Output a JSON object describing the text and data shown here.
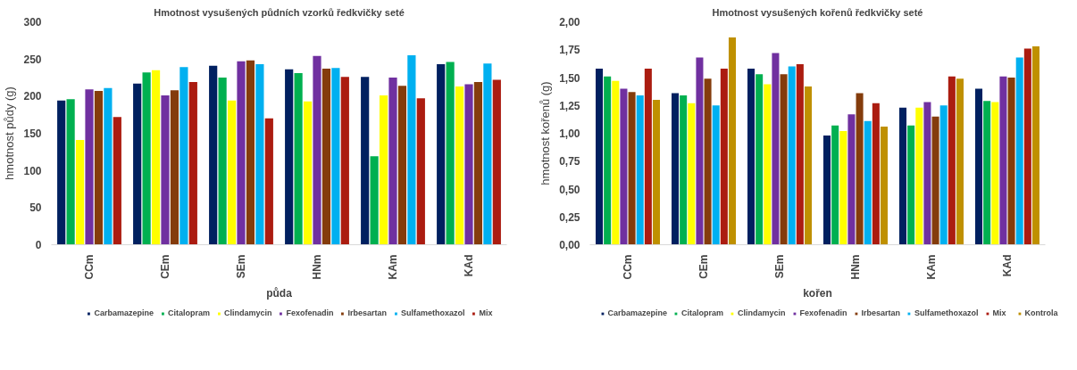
{
  "chart_data": [
    {
      "type": "bar",
      "title": "Hmotnost vysušených půdních vzorků ředkvičky seté",
      "xlabel": "půda",
      "ylabel": "hmotnost půdy (g)",
      "categories": [
        "CCm",
        "CEm",
        "SEm",
        "HNm",
        "KAm",
        "KAd"
      ],
      "ylim": [
        0,
        300
      ],
      "yticks": [
        0,
        50,
        100,
        150,
        200,
        250,
        300
      ],
      "grid": false,
      "legend": "bottom",
      "series": [
        {
          "name": "Carbamazepine",
          "color": "#002060",
          "values": [
            194,
            217,
            241,
            236,
            226,
            243
          ]
        },
        {
          "name": "Citalopram",
          "color": "#00b050",
          "values": [
            196,
            232,
            225,
            231,
            119,
            246
          ]
        },
        {
          "name": "Clindamycin",
          "color": "#ffff00",
          "values": [
            141,
            235,
            194,
            193,
            201,
            213
          ]
        },
        {
          "name": "Fexofenadin",
          "color": "#7030a0",
          "values": [
            209,
            201,
            247,
            254,
            225,
            216
          ]
        },
        {
          "name": "Irbesartan",
          "color": "#843c0c",
          "values": [
            207,
            208,
            248,
            237,
            214,
            219
          ]
        },
        {
          "name": "Sulfamethoxazol",
          "color": "#00b0f0",
          "values": [
            211,
            239,
            243,
            238,
            255,
            244
          ]
        },
        {
          "name": "Mix",
          "color": "#ab1c10",
          "values": [
            172,
            219,
            170,
            226,
            197,
            222
          ]
        }
      ]
    },
    {
      "type": "bar",
      "title": "Hmotnost vysušených kořenů ředkvičky seté",
      "xlabel": "kořen",
      "ylabel": "hmotnost kořenů (g)",
      "categories": [
        "CCm",
        "CEm",
        "SEm",
        "HNm",
        "KAm",
        "KAd"
      ],
      "ylim": [
        0,
        2
      ],
      "yticks": [
        {
          "value": 0,
          "label": "0,00"
        },
        {
          "value": 0.25,
          "label": "0,25"
        },
        {
          "value": 0.5,
          "label": "0,50"
        },
        {
          "value": 0.75,
          "label": "0,75"
        },
        {
          "value": 1,
          "label": "1,00"
        },
        {
          "value": 1.25,
          "label": "1,25"
        },
        {
          "value": 1.5,
          "label": "1,50"
        },
        {
          "value": 1.75,
          "label": "1,75"
        },
        {
          "value": 2,
          "label": "2,00"
        }
      ],
      "grid": false,
      "legend": "bottom",
      "series": [
        {
          "name": "Carbamazepine",
          "color": "#002060",
          "values": [
            1.58,
            1.36,
            1.58,
            0.98,
            1.23,
            1.4
          ]
        },
        {
          "name": "Citalopram",
          "color": "#00b050",
          "values": [
            1.51,
            1.34,
            1.53,
            1.07,
            1.07,
            1.29
          ]
        },
        {
          "name": "Clindamycin",
          "color": "#ffff00",
          "values": [
            1.47,
            1.27,
            1.44,
            1.02,
            1.23,
            1.28
          ]
        },
        {
          "name": "Fexofenadin",
          "color": "#7030a0",
          "values": [
            1.4,
            1.68,
            1.72,
            1.17,
            1.28,
            1.51
          ]
        },
        {
          "name": "Irbesartan",
          "color": "#843c0c",
          "values": [
            1.37,
            1.49,
            1.53,
            1.36,
            1.15,
            1.5
          ]
        },
        {
          "name": "Sulfamethoxazol",
          "color": "#00b0f0",
          "values": [
            1.34,
            1.25,
            1.6,
            1.11,
            1.25,
            1.68
          ]
        },
        {
          "name": "Mix",
          "color": "#ab1c10",
          "values": [
            1.58,
            1.58,
            1.62,
            1.27,
            1.51,
            1.76
          ]
        },
        {
          "name": "Kontrola",
          "color": "#bf9000",
          "values": [
            1.3,
            1.86,
            1.42,
            1.06,
            1.49,
            1.78
          ]
        }
      ]
    }
  ]
}
